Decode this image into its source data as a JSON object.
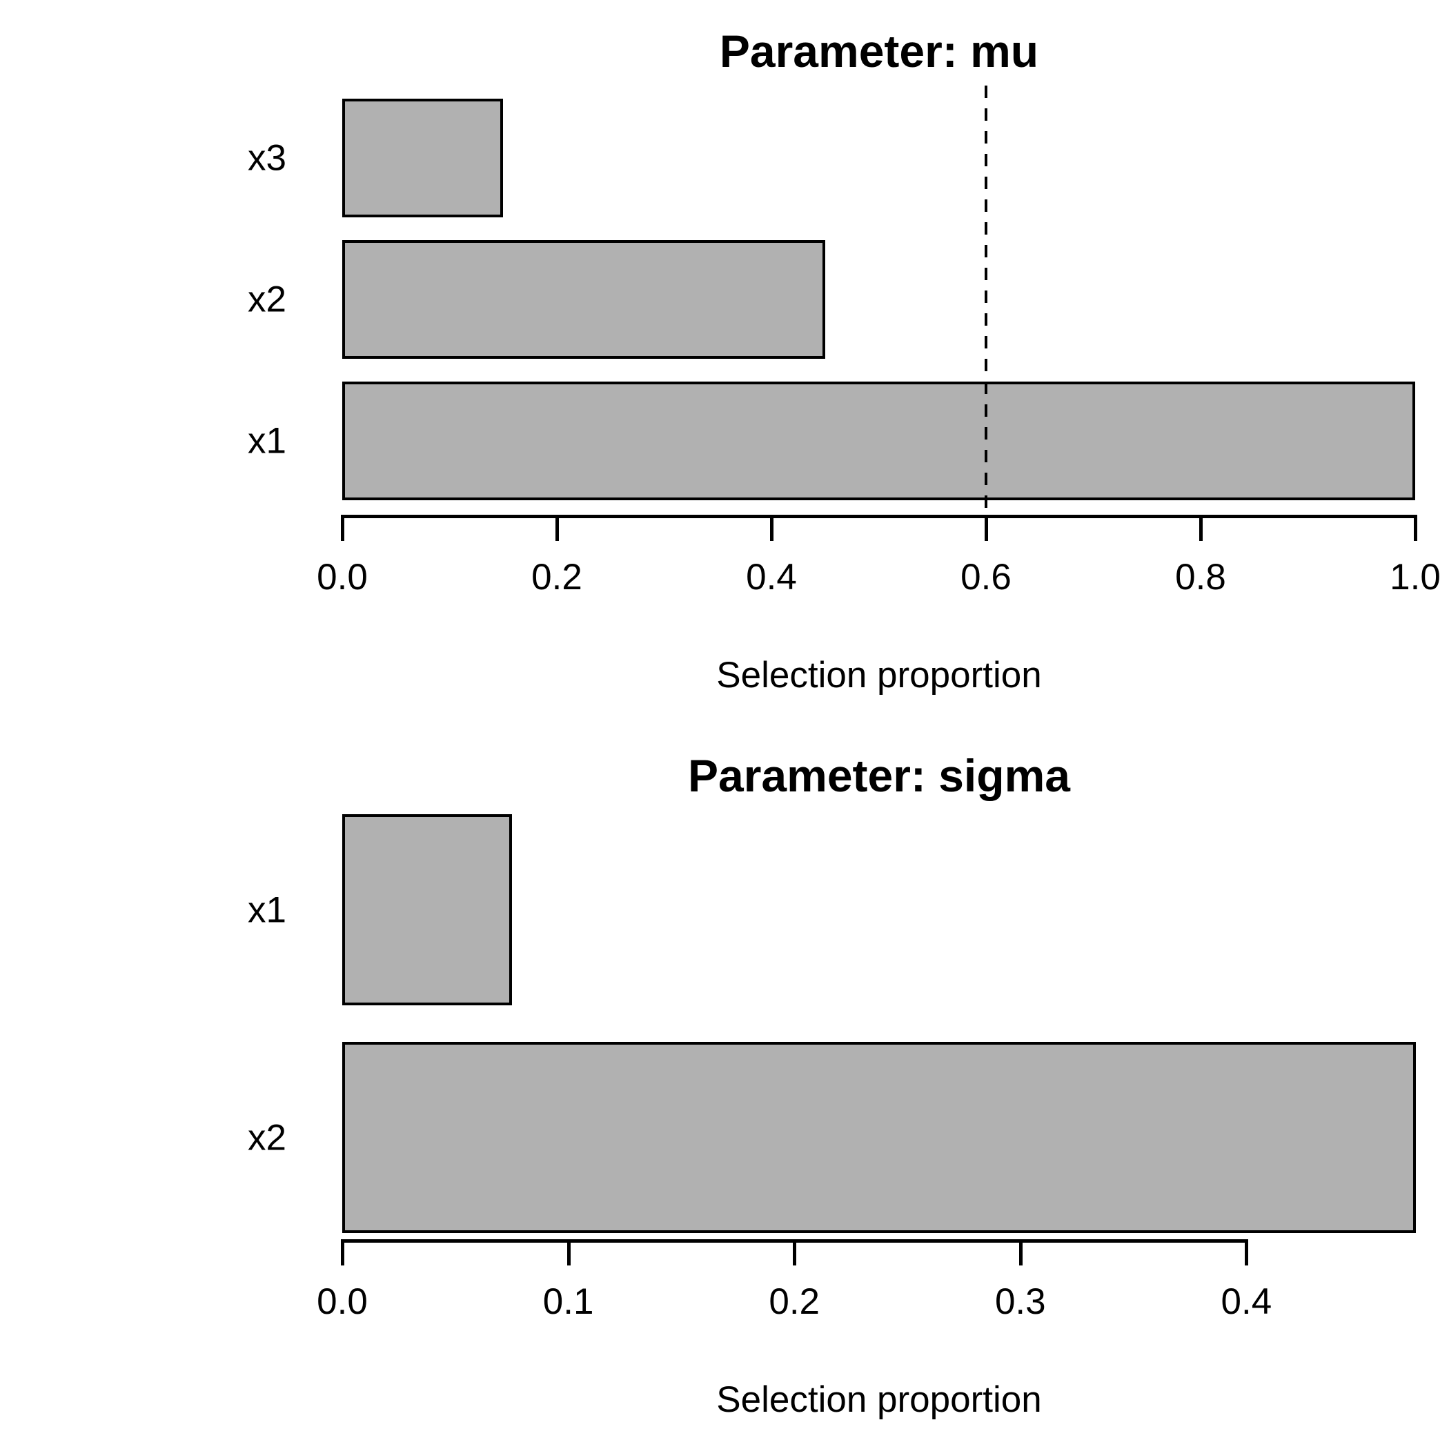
{
  "chart_data": [
    {
      "type": "bar",
      "orientation": "horizontal",
      "title": "Parameter: mu",
      "xlabel": "Selection proportion",
      "categories": [
        "x3",
        "x2",
        "x1"
      ],
      "values": [
        0.15,
        0.45,
        1.0
      ],
      "xticks": [
        0.0,
        0.2,
        0.4,
        0.6,
        0.8,
        1.0
      ],
      "xtick_labels": [
        "0.0",
        "0.2",
        "0.4",
        "0.6",
        "0.8",
        "1.0"
      ],
      "xlim": [
        0.0,
        1.0
      ],
      "threshold": 0.6,
      "threshold_line_style": "dashed",
      "grid": false,
      "legend": false,
      "bar_fill": "#b1b1b1",
      "bar_border": "#000000"
    },
    {
      "type": "bar",
      "orientation": "horizontal",
      "title": "Parameter: sigma",
      "xlabel": "Selection proportion",
      "categories": [
        "x1",
        "x2"
      ],
      "values": [
        0.075,
        0.475
      ],
      "xticks": [
        0.0,
        0.1,
        0.2,
        0.3,
        0.4
      ],
      "xtick_labels": [
        "0.0",
        "0.1",
        "0.2",
        "0.3",
        "0.4"
      ],
      "xlim": [
        0.0,
        0.475
      ],
      "threshold": null,
      "threshold_line_style": "dashed",
      "grid": false,
      "legend": false,
      "bar_fill": "#b1b1b1",
      "bar_border": "#000000"
    }
  ],
  "colors": {
    "background": "#ffffff",
    "bar_fill": "#b1b1b1",
    "bar_border": "#000000",
    "axis": "#000000",
    "text": "#000000",
    "threshold_line": "#000000"
  }
}
